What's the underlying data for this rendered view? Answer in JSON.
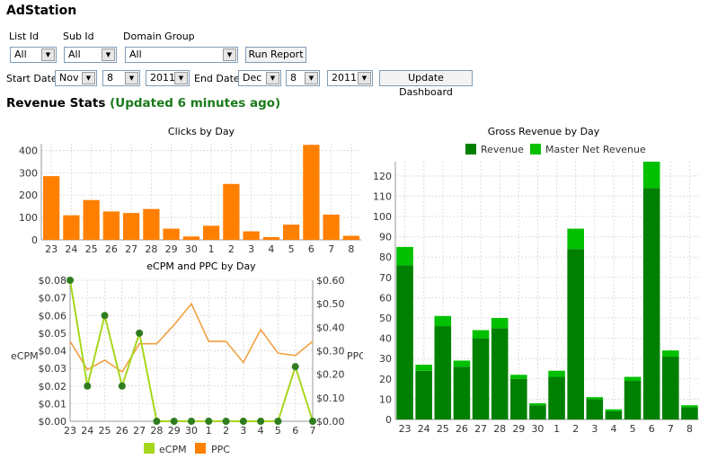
{
  "app": {
    "title": "AdStation"
  },
  "filters": {
    "list_id": {
      "label": "List Id",
      "value": "All"
    },
    "sub_id": {
      "label": "Sub Id",
      "value": "All"
    },
    "domain_group": {
      "label": "Domain Group",
      "value": "All"
    },
    "run_report_label": "Run Report",
    "start_date": {
      "label": "Start Date",
      "month": "Nov",
      "day": "8",
      "year": "2011"
    },
    "end_date": {
      "label": "End Date",
      "month": "Dec",
      "day": "8",
      "year": "2011"
    },
    "update_dashboard_label": "Update Dashboard"
  },
  "section": {
    "title": "Revenue Stats",
    "updated": "(Updated 6 minutes ago)"
  },
  "colors": {
    "orange": "#ff7f00",
    "green_dark": "#008000",
    "green_light": "#00c000",
    "lime": "#a6d71c",
    "ppc_line": "#f0a040"
  },
  "chart_data": [
    {
      "type": "bar",
      "title": "Clicks by Day",
      "categories": [
        "23",
        "24",
        "25",
        "26",
        "27",
        "28",
        "29",
        "30",
        "1",
        "2",
        "3",
        "4",
        "5",
        "6",
        "7",
        "8"
      ],
      "values": [
        285,
        110,
        178,
        127,
        120,
        138,
        50,
        15,
        63,
        250,
        38,
        12,
        68,
        425,
        113,
        18
      ],
      "ylim": [
        0,
        430
      ],
      "yticks": [
        0,
        100,
        200,
        300,
        400
      ]
    },
    {
      "type": "line",
      "title": "eCPM and PPC by Day",
      "categories": [
        "23",
        "24",
        "25",
        "26",
        "27",
        "28",
        "29",
        "30",
        "1",
        "2",
        "3",
        "4",
        "5",
        "6",
        "7"
      ],
      "ylabel": "eCPM",
      "y2label": "PPC",
      "yticks": [
        "$0.00",
        "$0.01",
        "$0.02",
        "$0.03",
        "$0.04",
        "$0.05",
        "$0.06",
        "$0.07",
        "$0.08"
      ],
      "y2ticks": [
        "$0.00",
        "$0.10",
        "$0.20",
        "$0.30",
        "$0.40",
        "$0.50",
        "$0.60"
      ],
      "series": [
        {
          "name": "eCPM",
          "values": [
            0.08,
            0.02,
            0.06,
            0.02,
            0.05,
            0,
            0,
            0,
            0,
            0,
            0,
            0,
            0,
            0.031,
            0
          ]
        },
        {
          "name": "PPC",
          "values": [
            0.34,
            0.22,
            0.26,
            0.21,
            0.33,
            0.33,
            0.41,
            0.5,
            0.34,
            0.34,
            0.25,
            0.39,
            0.29,
            0.28,
            0.34
          ]
        }
      ],
      "ylim": [
        0,
        0.08
      ],
      "y2lim": [
        0,
        0.6
      ]
    },
    {
      "type": "bar",
      "title": "Gross Revenue by Day",
      "categories": [
        "23",
        "24",
        "25",
        "26",
        "27",
        "28",
        "29",
        "30",
        "1",
        "2",
        "3",
        "4",
        "5",
        "6",
        "7",
        "8"
      ],
      "series": [
        {
          "name": "Revenue",
          "values": [
            76,
            24,
            46,
            26,
            40,
            45,
            20,
            7,
            21,
            84,
            10,
            4,
            19,
            114,
            31,
            6
          ]
        },
        {
          "name": "Master Net Revenue",
          "values": [
            9,
            3,
            5,
            3,
            4,
            5,
            2,
            1,
            3,
            10,
            1,
            1,
            2,
            13,
            3,
            1
          ]
        }
      ],
      "ylim": [
        0,
        127
      ],
      "yticks": [
        0,
        10,
        20,
        30,
        40,
        50,
        60,
        70,
        80,
        90,
        100,
        110,
        120
      ],
      "legend": "top"
    }
  ]
}
